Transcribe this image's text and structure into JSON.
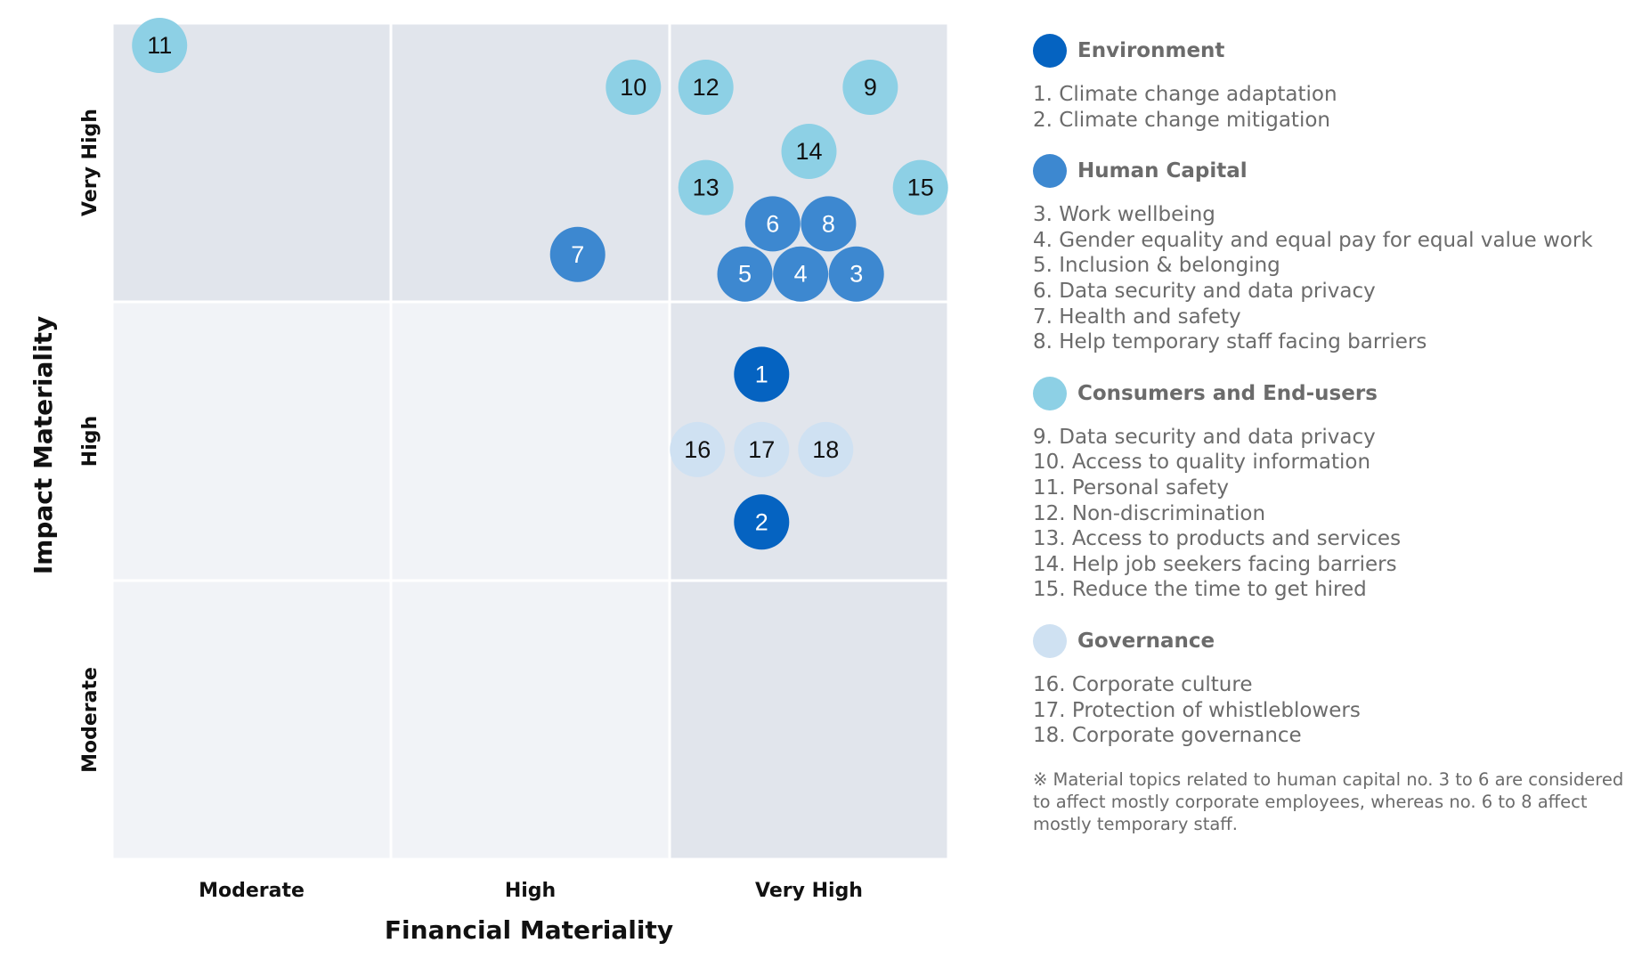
{
  "chart_data": {
    "type": "scatter",
    "title": "",
    "xlabel": "Financial Materiality",
    "ylabel": "Impact Materiality",
    "x_categories": [
      "Moderate",
      "High",
      "Very High"
    ],
    "y_categories": [
      "Moderate",
      "High",
      "Very High"
    ],
    "xlim": [
      0,
      3
    ],
    "ylim": [
      0,
      3
    ],
    "quadrant_shading": {
      "light": "#f1f3f7",
      "dark": "#e1e5ec"
    },
    "series": [
      {
        "name": "Environment",
        "color": "#0563c1",
        "label_color": "#ffffff",
        "points": [
          {
            "id": "1",
            "x": 2.33,
            "y": 1.74
          },
          {
            "id": "2",
            "x": 2.33,
            "y": 1.21
          }
        ]
      },
      {
        "name": "Human Capital",
        "color": "#3d88d0",
        "label_color": "#ffffff",
        "points": [
          {
            "id": "3",
            "x": 2.67,
            "y": 2.1
          },
          {
            "id": "4",
            "x": 2.47,
            "y": 2.1
          },
          {
            "id": "5",
            "x": 2.27,
            "y": 2.1
          },
          {
            "id": "6",
            "x": 2.37,
            "y": 2.28
          },
          {
            "id": "7",
            "x": 1.67,
            "y": 2.17
          },
          {
            "id": "8",
            "x": 2.57,
            "y": 2.28
          }
        ]
      },
      {
        "name": "Consumers and End-users",
        "color": "#8dd0e5",
        "label_color": "#111111",
        "points": [
          {
            "id": "9",
            "x": 2.72,
            "y": 2.77
          },
          {
            "id": "10",
            "x": 1.87,
            "y": 2.77
          },
          {
            "id": "11",
            "x": 0.17,
            "y": 2.92
          },
          {
            "id": "12",
            "x": 2.13,
            "y": 2.77
          },
          {
            "id": "13",
            "x": 2.13,
            "y": 2.41
          },
          {
            "id": "14",
            "x": 2.5,
            "y": 2.54
          },
          {
            "id": "15",
            "x": 2.9,
            "y": 2.41
          }
        ]
      },
      {
        "name": "Governance",
        "color": "#cfe1f2",
        "label_color": "#111111",
        "points": [
          {
            "id": "16",
            "x": 2.1,
            "y": 1.47
          },
          {
            "id": "17",
            "x": 2.33,
            "y": 1.47
          },
          {
            "id": "18",
            "x": 2.56,
            "y": 1.47
          }
        ]
      }
    ]
  },
  "legend": {
    "groups": [
      {
        "title": "Environment",
        "color": "#0563c1",
        "items": [
          "1. Climate change adaptation",
          "2. Climate change mitigation"
        ]
      },
      {
        "title": "Human Capital",
        "color": "#3d88d0",
        "items": [
          "3. Work wellbeing",
          "4. Gender equality and equal pay for equal value work",
          "5. Inclusion & belonging",
          "6. Data security and data privacy",
          "7. Health and safety",
          "8. Help temporary staff facing barriers"
        ]
      },
      {
        "title": "Consumers and End-users",
        "color": "#8dd0e5",
        "items": [
          "9. Data security and data privacy",
          "10. Access to quality information",
          "11. Personal safety",
          "12. Non-discrimination",
          "13. Access to products and services",
          "14. Help job seekers facing barriers",
          "15. Reduce the time to get hired"
        ]
      },
      {
        "title": "Governance",
        "color": "#cfe1f2",
        "items": [
          "16. Corporate culture",
          "17. Protection of whistleblowers",
          "18. Corporate governance"
        ]
      }
    ],
    "note": "※ Material topics related to human capital no. 3 to 6 are considered to affect mostly corporate employees, whereas no. 6 to 8 affect mostly temporary staff."
  }
}
